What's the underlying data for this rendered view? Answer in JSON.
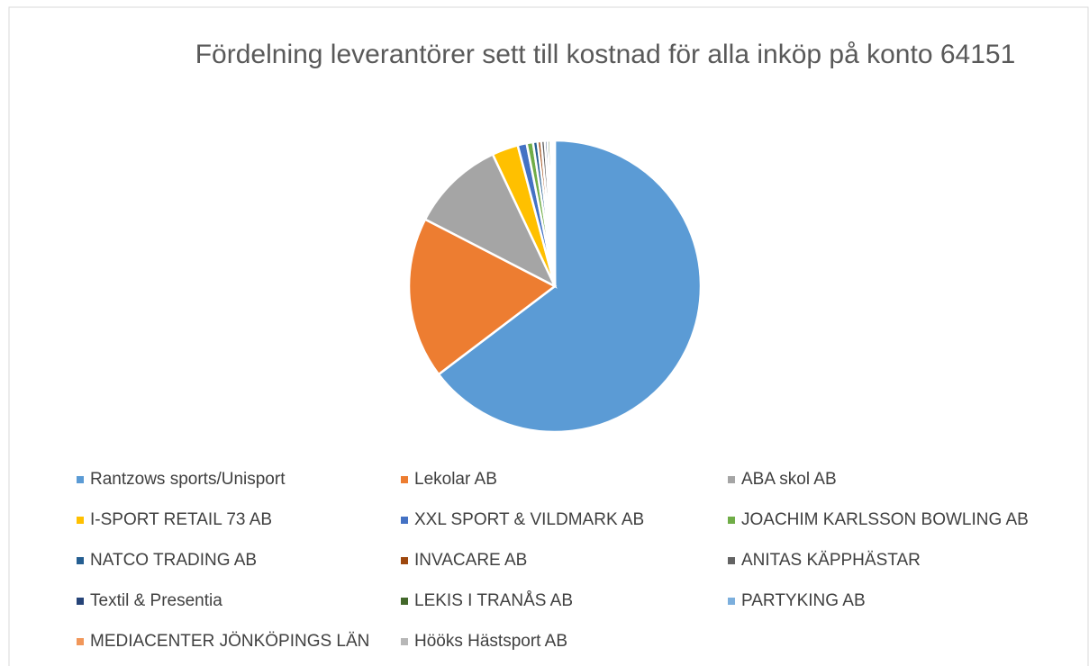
{
  "chart_data": {
    "type": "pie",
    "title": "Fördelning leverantörer sett till kostnad för alla inköp på konto 64151",
    "categories": [
      "Rantzows sports/Unisport",
      "Lekolar AB",
      "ABA skol AB",
      "I-SPORT RETAIL 73 AB",
      "XXL SPORT & VILDMARK AB",
      "JOACHIM KARLSSON BOWLING AB",
      "NATCO TRADING AB",
      "INVACARE AB",
      "ANITAS KÄPPHÄSTAR",
      "Textil & Presentia",
      "LEKIS I TRANÅS AB",
      "PARTYKING AB",
      "MEDIACENTER JÖNKÖPINGS LÄN",
      "Hööks Hästsport AB"
    ],
    "values": [
      64.6,
      17.9,
      10.4,
      2.9,
      1.0,
      0.7,
      0.5,
      0.4,
      0.4,
      0.3,
      0.3,
      0.2,
      0.2,
      0.1
    ],
    "colors": [
      "#5B9BD5",
      "#ED7D31",
      "#A5A5A5",
      "#FFC000",
      "#4472C4",
      "#70AD47",
      "#255E91",
      "#9E480E",
      "#636363",
      "#264478",
      "#43682B",
      "#7CAFDD",
      "#F1975A",
      "#B7B7B7"
    ],
    "legend": "bottom"
  }
}
